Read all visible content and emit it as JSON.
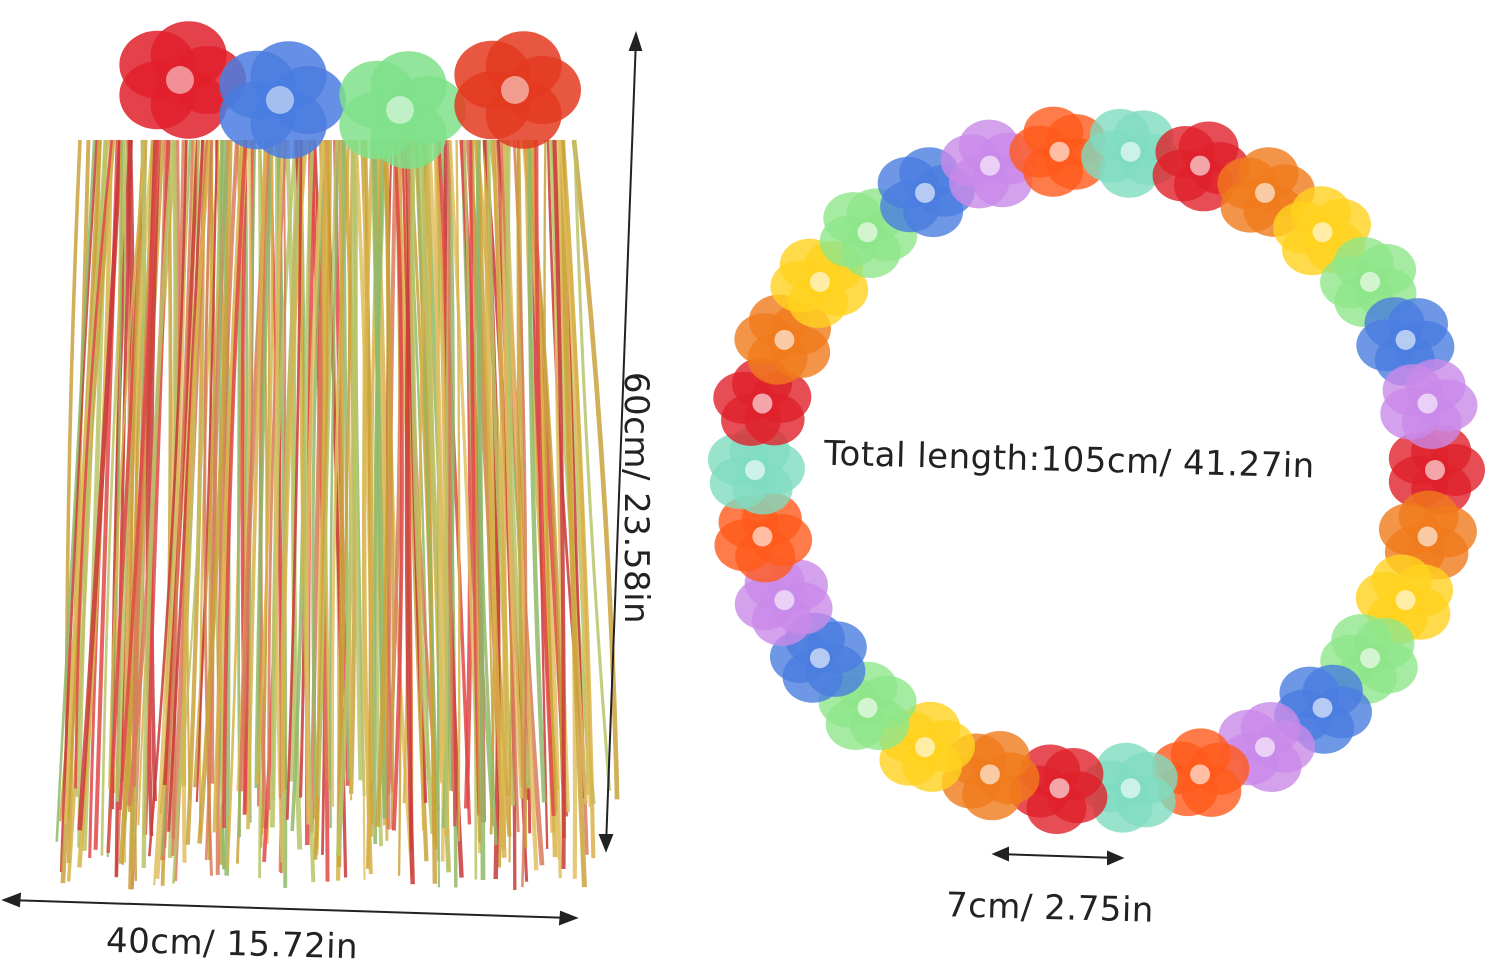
{
  "skirt": {
    "width_label": "40cm/ 15.72in",
    "height_label": "60cm/ 23.58in",
    "strand_colors": [
      "#d8b34a",
      "#c93a3a",
      "#e0c062",
      "#8fb96a",
      "#e04848",
      "#caa23c",
      "#d97b5a",
      "#b9c46a"
    ],
    "flower_colors": [
      "#e0202a",
      "#4a7de0",
      "#7fe08a",
      "#e33a20"
    ]
  },
  "lei": {
    "total_length_label": "Total length:105cm/ 41.27in",
    "flower_width_label": "7cm/ 2.75in",
    "flower_colors": [
      "#e0202a",
      "#f07a1c",
      "#ffd21e",
      "#8fe68a",
      "#4a7de0",
      "#c98ae8",
      "#ff5a1c",
      "#7fdcc0"
    ]
  }
}
